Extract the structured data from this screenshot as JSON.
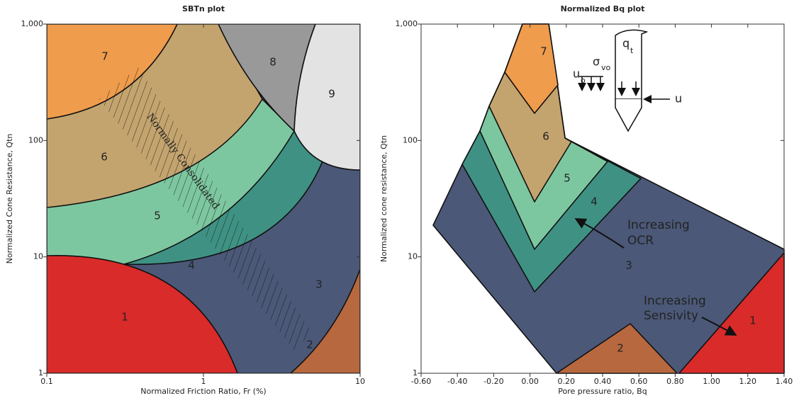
{
  "chart_data": [
    {
      "type": "zones",
      "title": "SBTn plot",
      "x_label": "Normalized Friction Ratio, Fr (%)",
      "y_label": "Normalized Cone Resistance, Qtn",
      "x_log": true,
      "y_log": true,
      "xlim": [
        0.1,
        10
      ],
      "xticks": [
        0.1,
        1,
        10
      ],
      "ylim": [
        1,
        1000
      ],
      "yticks": [
        1,
        10,
        100,
        {
          "value": 1000,
          "label": "1,000"
        }
      ],
      "zones": [
        "1",
        "2",
        "3",
        "4",
        "5",
        "6",
        "7",
        "8",
        "9"
      ],
      "annotations": [
        "Normally Consolidated"
      ]
    },
    {
      "type": "zones",
      "title": "Normalized Bq plot",
      "x_label": "Pore pressure ratio, Bq",
      "y_label": "Normalized cone resistance, Qtn",
      "x_log": false,
      "y_log": true,
      "xlim": [
        -0.6,
        1.4
      ],
      "xticks": [
        {
          "value": -0.6,
          "label": "-0.60"
        },
        {
          "value": -0.4,
          "label": "-0.40"
        },
        {
          "value": -0.2,
          "label": "-0.20"
        },
        {
          "value": 0,
          "label": "0.00"
        },
        {
          "value": 0.2,
          "label": "0.20"
        },
        {
          "value": 0.4,
          "label": "0.40"
        },
        {
          "value": 0.6,
          "label": "0.60"
        },
        {
          "value": 0.8,
          "label": "0.80"
        },
        {
          "value": 1.0,
          "label": "1.00"
        },
        {
          "value": 1.2,
          "label": "1.20"
        },
        {
          "value": 1.4,
          "label": "1.40"
        }
      ],
      "ylim": [
        1,
        1000
      ],
      "yticks": [
        1,
        10,
        100,
        {
          "value": 1000,
          "label": "1,000"
        }
      ],
      "zones": [
        "1",
        "2",
        "3",
        "4",
        "5",
        "6",
        "7"
      ],
      "annotations": [
        "Increasing",
        "OCR",
        "Increasing",
        "Sensivity"
      ],
      "probe_labels": [
        "u",
        "o",
        "σ",
        "vo",
        "q",
        "t",
        "u"
      ]
    }
  ]
}
